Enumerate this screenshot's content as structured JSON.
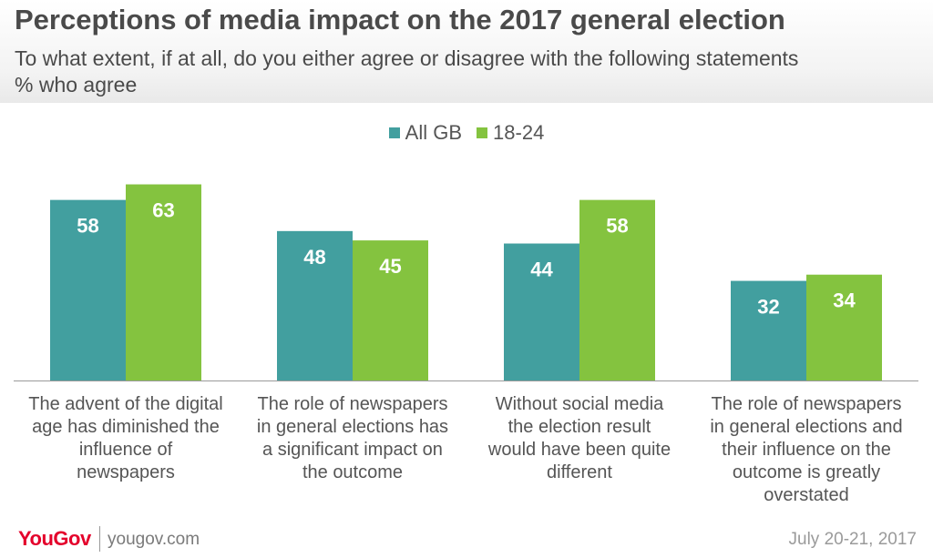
{
  "header": {
    "title": "Perceptions of media impact on the 2017 general election",
    "subtitle_line1": "To what extent, if at all, do you either agree or disagree with the following statements",
    "subtitle_line2": "% who agree"
  },
  "legend": [
    {
      "name": "All GB",
      "color": "#429f9f"
    },
    {
      "name": "18-24",
      "color": "#84c33f"
    }
  ],
  "chart_data": {
    "type": "bar",
    "title": "Perceptions of media impact on the 2017 general election",
    "subtitle": "To what extent, if at all, do you either agree or disagree with the following statements",
    "ylabel": "% who agree",
    "ylim": [
      0,
      63
    ],
    "grid": false,
    "legend_position": "top-center",
    "categories": [
      "The advent of the digital age has diminished the influence of newspapers",
      "The role of newspapers in general elections has a significant impact on the outcome",
      "Without social media the election result would have been quite different",
      "The role of newspapers in general elections and their influence on the outcome is greatly overstated"
    ],
    "category_lines": [
      [
        "The advent of the digital",
        "age has diminished the",
        "influence of",
        "newspapers"
      ],
      [
        "The role of newspapers",
        "in general elections has",
        "a significant impact on",
        "the outcome"
      ],
      [
        "Without social media",
        "the election result",
        "would have been quite",
        "different"
      ],
      [
        "The role of newspapers",
        "in general elections and",
        "their influence on the",
        "outcome is greatly",
        "overstated"
      ]
    ],
    "series": [
      {
        "name": "All GB",
        "color": "#429f9f",
        "values": [
          58,
          48,
          44,
          32
        ]
      },
      {
        "name": "18-24",
        "color": "#84c33f",
        "values": [
          63,
          45,
          58,
          34
        ]
      }
    ]
  },
  "footer": {
    "logo": "YouGov",
    "site": "yougov.com",
    "date": "July 20-21, 2017"
  }
}
